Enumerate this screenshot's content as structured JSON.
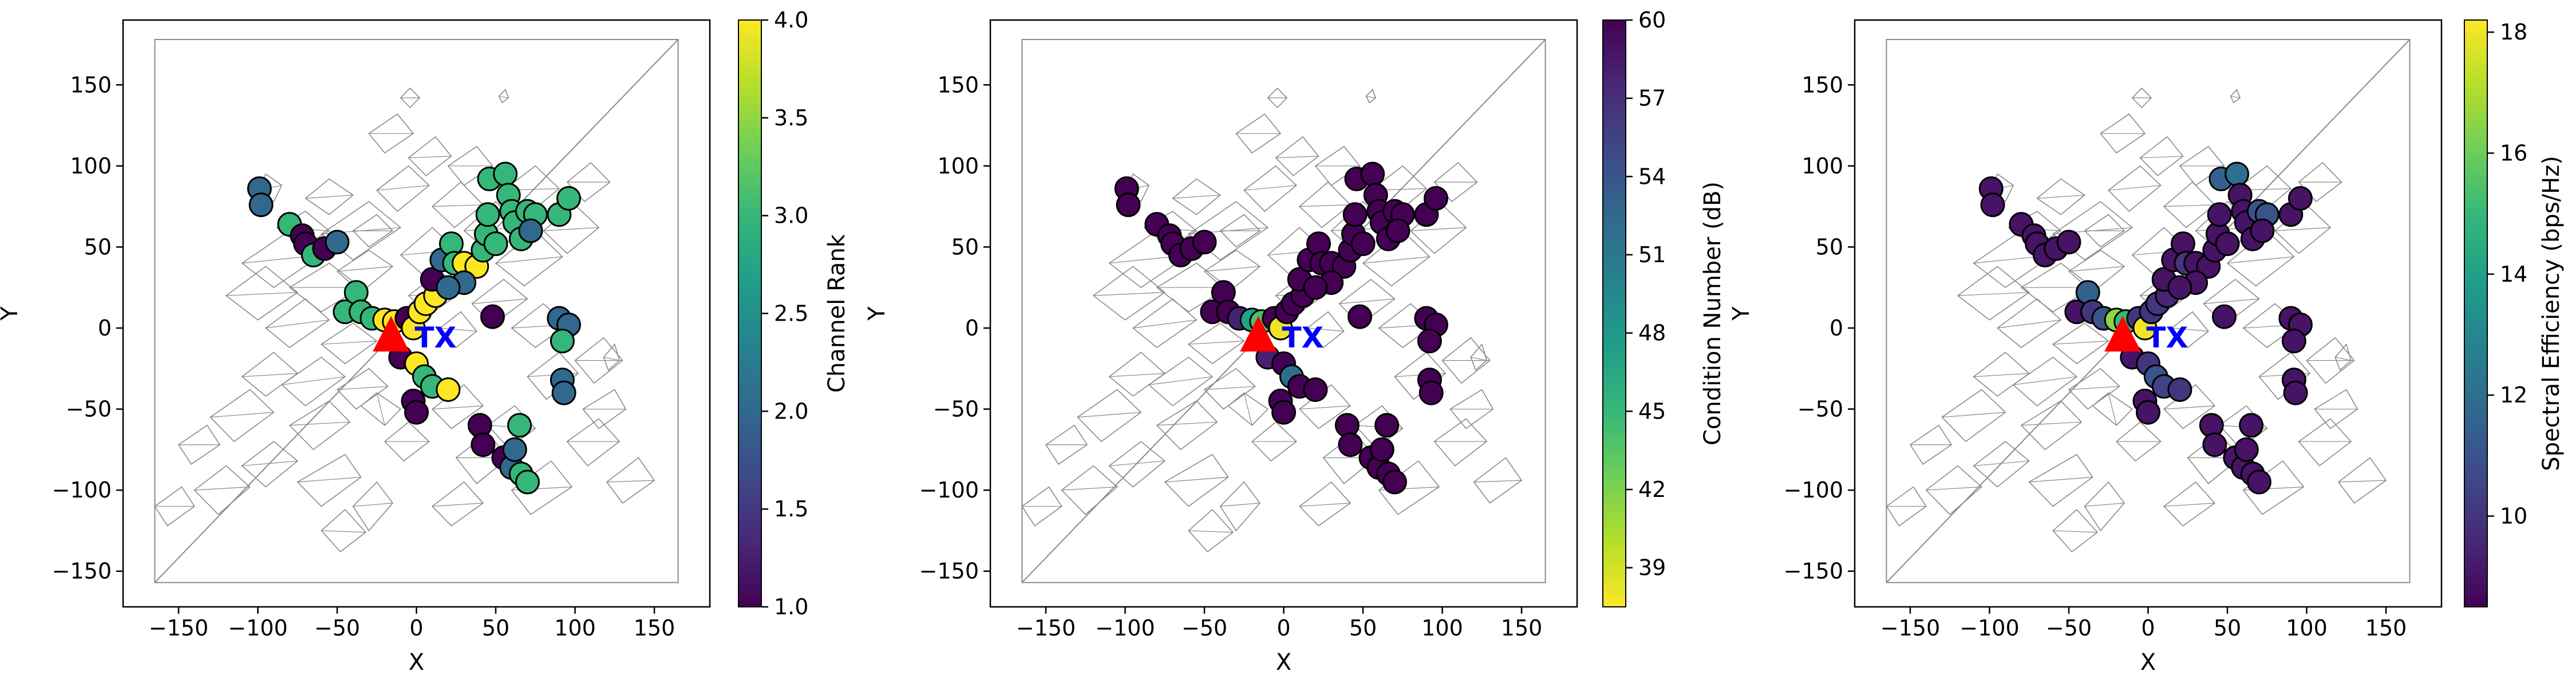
{
  "chart_data": [
    {
      "type": "scatter",
      "title": "",
      "xlabel": "X",
      "ylabel": "Y",
      "xlim": [
        -185,
        185
      ],
      "ylim": [
        -172,
        190
      ],
      "xticks": [
        -150,
        -100,
        -50,
        0,
        50,
        100,
        150
      ],
      "yticks": [
        -150,
        -100,
        -50,
        0,
        50,
        100,
        150
      ],
      "colorbar": {
        "label": "Channel Rank",
        "min": 1.0,
        "max": 4.0,
        "ticks": [
          "1.0",
          "1.5",
          "2.0",
          "2.5",
          "3.0",
          "3.5",
          "4.0"
        ],
        "tick_values": [
          1.0,
          1.5,
          2.0,
          2.5,
          3.0,
          3.5,
          4.0
        ],
        "reversed": false
      },
      "grid": false,
      "series": [
        {
          "name": "Channel Rank",
          "points": [
            [
              -99,
              86,
              2
            ],
            [
              -98,
              76,
              2
            ],
            [
              -80,
              64,
              3
            ],
            [
              -72,
              57,
              1
            ],
            [
              -70,
              52,
              1
            ],
            [
              -65,
              45,
              3
            ],
            [
              -58,
              49,
              1
            ],
            [
              -50,
              53,
              2
            ],
            [
              -45,
              10,
              3
            ],
            [
              -38,
              22,
              3
            ],
            [
              -35,
              10,
              3
            ],
            [
              -28,
              6,
              3
            ],
            [
              -20,
              5,
              4
            ],
            [
              -14,
              4,
              4
            ],
            [
              -6,
              6,
              1
            ],
            [
              -2,
              0,
              4
            ],
            [
              2,
              10,
              4
            ],
            [
              6,
              15,
              4
            ],
            [
              12,
              20,
              4
            ],
            [
              10,
              30,
              1
            ],
            [
              16,
              42,
              2
            ],
            [
              22,
              52,
              3
            ],
            [
              24,
              40,
              3
            ],
            [
              30,
              40,
              4
            ],
            [
              38,
              38,
              4
            ],
            [
              30,
              28,
              2
            ],
            [
              20,
              25,
              2
            ],
            [
              42,
              48,
              3
            ],
            [
              44,
              58,
              3
            ],
            [
              50,
              52,
              3
            ],
            [
              45,
              70,
              3
            ],
            [
              46,
              92,
              3
            ],
            [
              56,
              95,
              3
            ],
            [
              58,
              82,
              3
            ],
            [
              60,
              72,
              3
            ],
            [
              62,
              65,
              3
            ],
            [
              66,
              55,
              3
            ],
            [
              70,
              72,
              3
            ],
            [
              75,
              70,
              3
            ],
            [
              72,
              60,
              2
            ],
            [
              90,
              70,
              3
            ],
            [
              96,
              80,
              3
            ],
            [
              48,
              7,
              1
            ],
            [
              90,
              6,
              2
            ],
            [
              96,
              2,
              2
            ],
            [
              92,
              -8,
              3
            ],
            [
              92,
              -32,
              2
            ],
            [
              93,
              -40,
              2
            ],
            [
              -10,
              -18,
              1
            ],
            [
              0,
              -22,
              4
            ],
            [
              5,
              -30,
              3
            ],
            [
              10,
              -36,
              3
            ],
            [
              20,
              -38,
              4
            ],
            [
              -2,
              -45,
              1
            ],
            [
              0,
              -52,
              1
            ],
            [
              40,
              -60,
              1
            ],
            [
              42,
              -72,
              1
            ],
            [
              55,
              -80,
              1
            ],
            [
              60,
              -86,
              2
            ],
            [
              66,
              -90,
              3
            ],
            [
              70,
              -95,
              3
            ],
            [
              62,
              -75,
              2
            ],
            [
              65,
              -60,
              3
            ]
          ]
        }
      ],
      "annotations": [
        {
          "text": "TX",
          "x": 12,
          "y": -5
        }
      ],
      "markers": [
        {
          "shape": "triangle",
          "color": "#ff0000",
          "x": -16,
          "y": -6
        }
      ]
    },
    {
      "type": "scatter",
      "title": "",
      "xlabel": "X",
      "ylabel": "Y",
      "xlim": [
        -185,
        185
      ],
      "ylim": [
        -172,
        190
      ],
      "xticks": [
        -150,
        -100,
        -50,
        0,
        50,
        100,
        150
      ],
      "yticks": [
        -150,
        -100,
        -50,
        0,
        50,
        100,
        150
      ],
      "colorbar": {
        "label": "Condition Number (dB)",
        "min": 37.5,
        "max": 60,
        "ticks": [
          "39",
          "42",
          "45",
          "48",
          "51",
          "54",
          "57",
          "60"
        ],
        "tick_values": [
          39,
          42,
          45,
          48,
          51,
          54,
          57,
          60
        ],
        "reversed": true
      },
      "grid": false,
      "series": [
        {
          "name": "Condition Number (dB)",
          "points": [
            [
              -99,
              86,
              60
            ],
            [
              -98,
              76,
              60
            ],
            [
              -80,
              64,
              60
            ],
            [
              -72,
              57,
              60
            ],
            [
              -70,
              52,
              60
            ],
            [
              -65,
              45,
              60
            ],
            [
              -58,
              49,
              60
            ],
            [
              -50,
              53,
              60
            ],
            [
              -45,
              10,
              60
            ],
            [
              -38,
              22,
              60
            ],
            [
              -35,
              10,
              60
            ],
            [
              -28,
              6,
              58
            ],
            [
              -20,
              5,
              47
            ],
            [
              -14,
              4,
              44
            ],
            [
              -6,
              6,
              60
            ],
            [
              -2,
              0,
              38
            ],
            [
              2,
              10,
              60
            ],
            [
              6,
              15,
              60
            ],
            [
              12,
              20,
              60
            ],
            [
              10,
              30,
              60
            ],
            [
              16,
              42,
              60
            ],
            [
              22,
              52,
              60
            ],
            [
              24,
              40,
              60
            ],
            [
              30,
              40,
              60
            ],
            [
              38,
              38,
              60
            ],
            [
              30,
              28,
              60
            ],
            [
              20,
              25,
              60
            ],
            [
              42,
              48,
              60
            ],
            [
              44,
              58,
              60
            ],
            [
              50,
              52,
              60
            ],
            [
              45,
              70,
              60
            ],
            [
              46,
              92,
              60
            ],
            [
              56,
              95,
              60
            ],
            [
              58,
              82,
              60
            ],
            [
              60,
              72,
              60
            ],
            [
              62,
              65,
              60
            ],
            [
              66,
              55,
              60
            ],
            [
              70,
              72,
              60
            ],
            [
              75,
              70,
              60
            ],
            [
              72,
              60,
              60
            ],
            [
              90,
              70,
              60
            ],
            [
              96,
              80,
              60
            ],
            [
              48,
              7,
              60
            ],
            [
              90,
              6,
              60
            ],
            [
              96,
              2,
              60
            ],
            [
              92,
              -8,
              60
            ],
            [
              92,
              -32,
              60
            ],
            [
              93,
              -40,
              60
            ],
            [
              -10,
              -18,
              58
            ],
            [
              0,
              -22,
              60
            ],
            [
              5,
              -30,
              52
            ],
            [
              10,
              -36,
              60
            ],
            [
              20,
              -38,
              60
            ],
            [
              -2,
              -45,
              60
            ],
            [
              0,
              -52,
              60
            ],
            [
              40,
              -60,
              60
            ],
            [
              42,
              -72,
              60
            ],
            [
              55,
              -80,
              60
            ],
            [
              60,
              -86,
              60
            ],
            [
              66,
              -90,
              60
            ],
            [
              70,
              -95,
              60
            ],
            [
              62,
              -75,
              60
            ],
            [
              65,
              -60,
              60
            ]
          ]
        }
      ],
      "annotations": [
        {
          "text": "TX",
          "x": 12,
          "y": -5
        }
      ],
      "markers": [
        {
          "shape": "triangle",
          "color": "#ff0000",
          "x": -16,
          "y": -6
        }
      ]
    },
    {
      "type": "scatter",
      "title": "",
      "xlabel": "X",
      "ylabel": "Y",
      "xlim": [
        -185,
        185
      ],
      "ylim": [
        -172,
        190
      ],
      "xticks": [
        -150,
        -100,
        -50,
        0,
        50,
        100,
        150
      ],
      "yticks": [
        -150,
        -100,
        -50,
        0,
        50,
        100,
        150
      ],
      "colorbar": {
        "label": "Spectral Efficiency (bps/Hz)",
        "min": 8.5,
        "max": 18.2,
        "ticks": [
          "10",
          "12",
          "14",
          "16",
          "18"
        ],
        "tick_values": [
          10,
          12,
          14,
          16,
          18
        ],
        "reversed": false
      },
      "grid": false,
      "series": [
        {
          "name": "Spectral Efficiency (bps/Hz)",
          "points": [
            [
              -99,
              86,
              9
            ],
            [
              -98,
              76,
              9
            ],
            [
              -80,
              64,
              9
            ],
            [
              -72,
              57,
              9
            ],
            [
              -70,
              52,
              9
            ],
            [
              -65,
              45,
              9
            ],
            [
              -58,
              49,
              9
            ],
            [
              -50,
              53,
              9
            ],
            [
              -45,
              10,
              9
            ],
            [
              -38,
              22,
              11.5
            ],
            [
              -35,
              10,
              10
            ],
            [
              -28,
              6,
              11
            ],
            [
              -20,
              5,
              16.5
            ],
            [
              -14,
              4,
              15
            ],
            [
              -6,
              6,
              10
            ],
            [
              -2,
              0,
              18
            ],
            [
              2,
              10,
              10
            ],
            [
              6,
              15,
              10
            ],
            [
              12,
              20,
              9.5
            ],
            [
              10,
              30,
              9
            ],
            [
              16,
              42,
              9
            ],
            [
              22,
              52,
              9
            ],
            [
              24,
              40,
              10
            ],
            [
              30,
              40,
              9
            ],
            [
              38,
              38,
              9
            ],
            [
              30,
              28,
              9
            ],
            [
              20,
              25,
              9
            ],
            [
              42,
              48,
              9
            ],
            [
              44,
              58,
              9
            ],
            [
              50,
              52,
              9
            ],
            [
              45,
              70,
              9
            ],
            [
              46,
              92,
              11.5
            ],
            [
              56,
              95,
              12
            ],
            [
              58,
              82,
              9
            ],
            [
              60,
              72,
              9
            ],
            [
              62,
              65,
              9
            ],
            [
              66,
              55,
              9
            ],
            [
              70,
              72,
              11
            ],
            [
              75,
              70,
              11
            ],
            [
              72,
              60,
              9
            ],
            [
              90,
              70,
              9
            ],
            [
              96,
              80,
              9
            ],
            [
              48,
              7,
              9
            ],
            [
              90,
              6,
              9
            ],
            [
              96,
              2,
              9
            ],
            [
              92,
              -8,
              9
            ],
            [
              92,
              -32,
              9
            ],
            [
              93,
              -40,
              9
            ],
            [
              -10,
              -18,
              9
            ],
            [
              0,
              -22,
              10
            ],
            [
              5,
              -30,
              11
            ],
            [
              10,
              -36,
              10.5
            ],
            [
              20,
              -38,
              10
            ],
            [
              -2,
              -45,
              9
            ],
            [
              0,
              -52,
              9
            ],
            [
              40,
              -60,
              9
            ],
            [
              42,
              -72,
              9
            ],
            [
              55,
              -80,
              9
            ],
            [
              60,
              -86,
              9
            ],
            [
              66,
              -90,
              9
            ],
            [
              70,
              -95,
              9
            ],
            [
              62,
              -75,
              9
            ],
            [
              65,
              -60,
              9
            ]
          ]
        }
      ],
      "annotations": [
        {
          "text": "TX",
          "x": 12,
          "y": -5
        }
      ],
      "markers": [
        {
          "shape": "triangle",
          "color": "#ff0000",
          "x": -16,
          "y": -6
        }
      ]
    }
  ],
  "colormaps": {
    "viridis": [
      "#440154",
      "#482878",
      "#3e4989",
      "#31688e",
      "#26828e",
      "#1f9e89",
      "#35b779",
      "#6ece58",
      "#b5de2b",
      "#fde725"
    ]
  },
  "colors": {
    "tx_label": "#0000ff",
    "tx_triangle": "#ff0000",
    "building_outline": "#8a8a8a",
    "marker_edge": "#000000"
  }
}
